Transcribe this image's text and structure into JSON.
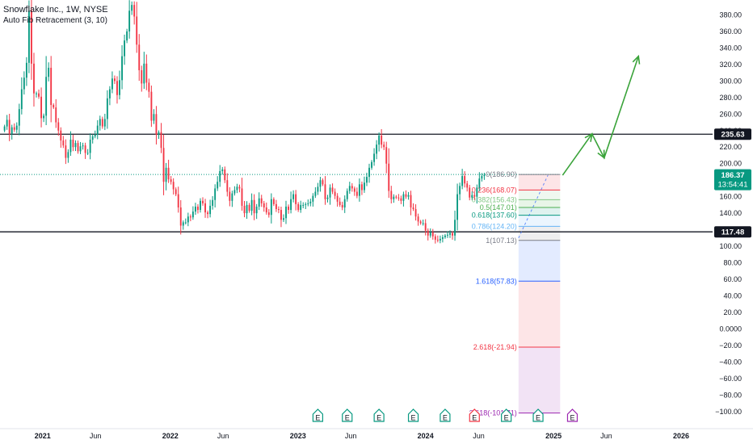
{
  "header": {
    "symbol": "Snowflake Inc., 1W, NYSE",
    "indicator": "Auto Fib Retracement (3, 10)"
  },
  "colors": {
    "up": "#089981",
    "down": "#f23645",
    "arrow": "#3aa33a",
    "level_line": "#131722",
    "price_tag": "#089981"
  },
  "chart_data": {
    "type": "candlestick",
    "ylim": [
      -106,
      398
    ],
    "y_ticks": [
      380,
      360,
      340,
      320,
      300,
      280,
      260,
      240,
      220,
      200,
      180,
      160,
      140,
      120,
      100,
      80,
      60,
      40,
      20,
      0,
      -20,
      -40,
      -60,
      -80,
      -100
    ],
    "y_tick_labels": [
      "380.00",
      "360.00",
      "340.00",
      "320.00",
      "300.00",
      "280.00",
      "260.00",
      "240.00",
      "220.00",
      "200.00",
      "180.00",
      "160.00",
      "140.00",
      "120.00",
      "100.00",
      "80.00",
      "60.00",
      "40.00",
      "20.00",
      "0.0000",
      "−20.00",
      "−40.00",
      "−60.00",
      "−80.00",
      "−100.00"
    ],
    "x_ticks": [
      "2021",
      "Jun",
      "2022",
      "Jun",
      "2023",
      "Jun",
      "2024",
      "Jun",
      "2025",
      "Jun",
      "2026"
    ],
    "x_tick_dates": [
      "2021-01",
      "2021-06",
      "2022-01",
      "2022-06",
      "2023-01",
      "2023-06",
      "2024-01",
      "2024-06",
      "2025-01",
      "2025-06",
      "2026-01"
    ],
    "x_range": [
      "2020-09",
      "2026-04"
    ],
    "horizontal_levels": [
      235.63,
      117.48
    ],
    "last_price": {
      "value": "186.37",
      "countdown": "13:54:41"
    },
    "level_tag": "235.63",
    "level_tag_2": "117.48",
    "fib_levels": [
      {
        "ratio": "0",
        "price": 186.9,
        "label": "0(186.90)",
        "color": "#787b86"
      },
      {
        "ratio": "0.236",
        "price": 168.07,
        "label": "0.236(168.07)",
        "color": "#f23645"
      },
      {
        "ratio": "0.382",
        "price": 156.43,
        "label": "0.382(156.43)",
        "color": "#81c784"
      },
      {
        "ratio": "0.5",
        "price": 147.01,
        "label": "0.5(147.01)",
        "color": "#4caf50"
      },
      {
        "ratio": "0.618",
        "price": 137.6,
        "label": "0.618(137.60)",
        "color": "#089981"
      },
      {
        "ratio": "0.786",
        "price": 124.2,
        "label": "0.786(124.20)",
        "color": "#64b5f6"
      },
      {
        "ratio": "1",
        "price": 107.13,
        "label": "1(107.13)",
        "color": "#787b86"
      },
      {
        "ratio": "1.618",
        "price": 57.83,
        "label": "1.618(57.83)",
        "color": "#2962ff"
      },
      {
        "ratio": "2.618",
        "price": -21.94,
        "label": "2.618(-21.94)",
        "color": "#f23645"
      },
      {
        "ratio": "3.618",
        "price": -101.71,
        "label": "3.618(-101.71)",
        "color": "#9c27b0"
      }
    ],
    "weekly_closes": {
      "start": "2020-09-14",
      "values": [
        245,
        253,
        236,
        244,
        241,
        246,
        266,
        290,
        304,
        322,
        385,
        321,
        285,
        285,
        281,
        255,
        258,
        305,
        316,
        271,
        268,
        250,
        240,
        228,
        222,
        207,
        214,
        229,
        220,
        225,
        215,
        221,
        222,
        213,
        213,
        229,
        233,
        235,
        246,
        254,
        245,
        254,
        279,
        290,
        303,
        300,
        283,
        301,
        330,
        349,
        360,
        385,
        392,
        378,
        344,
        313,
        297,
        321,
        298,
        287,
        252,
        260,
        235,
        238,
        219,
        178,
        195,
        181,
        178,
        169,
        163,
        147,
        125,
        129,
        129,
        136,
        135,
        142,
        148,
        144,
        155,
        152,
        141,
        139,
        149,
        156,
        170,
        178,
        191,
        193,
        180,
        166,
        155,
        164,
        168,
        172,
        170,
        149,
        140,
        150,
        143,
        156,
        140,
        148,
        158,
        152,
        147,
        141,
        138,
        157,
        151,
        145,
        144,
        132,
        134,
        148,
        144,
        157,
        163,
        151,
        144,
        150,
        150,
        151,
        152,
        154,
        161,
        166,
        172,
        180,
        175,
        157,
        159,
        171,
        166,
        161,
        154,
        150,
        147,
        157,
        167,
        173,
        170,
        166,
        161,
        175,
        168,
        177,
        184,
        195,
        202,
        212,
        223,
        234,
        223,
        220,
        200,
        167,
        157,
        160,
        159,
        158,
        155,
        163,
        160,
        162,
        147,
        145,
        136,
        130,
        128,
        128,
        119,
        113,
        117,
        112,
        108,
        107,
        109,
        111,
        113,
        114,
        116,
        113,
        132,
        163,
        173,
        185,
        176,
        171,
        159,
        162,
        160,
        171,
        182,
        185,
        186.37
      ]
    },
    "projection_arrow": [
      {
        "date": "2025-01-27",
        "price": 186
      },
      {
        "date": "2025-04-21",
        "price": 236
      },
      {
        "date": "2025-05-26",
        "price": 207
      },
      {
        "date": "2025-09-01",
        "price": 330
      }
    ],
    "dashed_trendline": [
      {
        "date": "2024-09-23",
        "price": 110
      },
      {
        "date": "2024-12-16",
        "price": 186
      }
    ],
    "earnings_markers": [
      {
        "date": "2023-02-27",
        "label": "E",
        "color": "#089981"
      },
      {
        "date": "2023-05-22",
        "label": "E",
        "color": "#089981"
      },
      {
        "date": "2023-08-21",
        "label": "E",
        "color": "#089981"
      },
      {
        "date": "2023-11-27",
        "label": "E",
        "color": "#089981"
      },
      {
        "date": "2024-02-26",
        "label": "E",
        "color": "#089981"
      },
      {
        "date": "2024-05-20",
        "label": "E",
        "color": "#f23645"
      },
      {
        "date": "2024-08-19",
        "label": "E",
        "color": "#089981"
      },
      {
        "date": "2024-11-18",
        "label": "E",
        "color": "#089981"
      },
      {
        "date": "2025-02-24",
        "label": "E",
        "color": "#9c27b0"
      }
    ],
    "grid": false
  }
}
